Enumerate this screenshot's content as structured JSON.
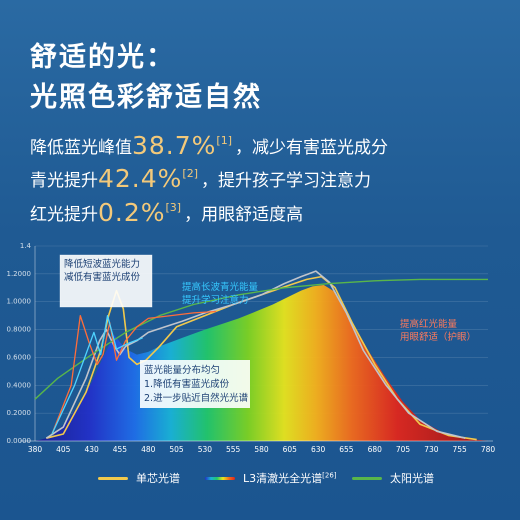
{
  "title_line1": "舒适的光：",
  "title_line2": "光照色彩舒适自然",
  "stats": [
    {
      "pre": "降低蓝光峰值",
      "value": "38.7%",
      "ref": "[1]",
      "post": "，减少有害蓝光成分"
    },
    {
      "pre": "青光提升",
      "value": "42.4%",
      "ref": "[2]",
      "post": "，提升孩子学习注意力"
    },
    {
      "pre": "红光提升",
      "value": "0.2%",
      "ref": "[3]",
      "post": "，用眼舒适度高"
    }
  ],
  "annotations": {
    "blue_line1": "降低短波蓝光能力",
    "blue_line2": "减低有害蓝光成份",
    "cyan_line1": "提高长波青光能量",
    "cyan_line2": "提升学习注意力",
    "red_line1": "提高红光能量",
    "red_line2": "用眼舒适（护眼）",
    "dist_line1": "蓝光能量分布均匀",
    "dist_line2": "1.降低有害蓝光成份",
    "dist_line3": "2.进一步贴近自然光光谱"
  },
  "legend": {
    "single": "单芯光谱",
    "l3_main": "L3清澈光全光谱",
    "l3_ref": "[26]",
    "sun": "太阳光谱"
  },
  "colors": {
    "single": "#f2c94c",
    "sun": "#59b64a",
    "l3": "#c0c4cc",
    "accent": "#f3c97a",
    "red_note": "#ff7a5c"
  },
  "chart_data": {
    "type": "line",
    "x_ticks": [
      380,
      405,
      430,
      455,
      480,
      505,
      530,
      555,
      580,
      605,
      630,
      655,
      680,
      705,
      730,
      755,
      780
    ],
    "y_tick_labels": [
      "1.4",
      "1.2000",
      "1.0000",
      "0.8000",
      "0.6000",
      "0.4000",
      "0.2000",
      "0.0000"
    ],
    "series": [
      {
        "name": "单芯光谱",
        "color": "#f2c94c",
        "x": [
          390,
          405,
          425,
          438,
          445,
          452,
          458,
          463,
          470,
          478,
          490,
          505,
          530,
          555,
          580,
          605,
          620,
          633,
          645,
          660,
          680,
          700,
          720,
          745,
          770
        ],
        "y": [
          0.02,
          0.05,
          0.35,
          0.65,
          0.9,
          1.08,
          0.95,
          0.6,
          0.55,
          0.58,
          0.68,
          0.82,
          0.9,
          0.98,
          1.05,
          1.12,
          1.16,
          1.18,
          1.1,
          0.85,
          0.55,
          0.3,
          0.12,
          0.04,
          0.01
        ]
      },
      {
        "name": "L3清澈光全光谱",
        "color": "#c0c4cc",
        "x": [
          390,
          405,
          425,
          437,
          443,
          450,
          455,
          460,
          470,
          480,
          495,
          510,
          530,
          555,
          580,
          600,
          615,
          628,
          640,
          655,
          670,
          690,
          710,
          735,
          760
        ],
        "y": [
          0.02,
          0.1,
          0.45,
          0.72,
          0.8,
          0.68,
          0.62,
          0.68,
          0.72,
          0.78,
          0.82,
          0.86,
          0.92,
          0.98,
          1.05,
          1.13,
          1.18,
          1.22,
          1.14,
          0.92,
          0.65,
          0.4,
          0.2,
          0.07,
          0.02
        ]
      },
      {
        "name": "太阳光谱",
        "color": "#59b64a",
        "x": [
          380,
          400,
          430,
          460,
          490,
          520,
          560,
          600,
          640,
          680,
          720,
          760,
          780
        ],
        "y": [
          0.3,
          0.45,
          0.62,
          0.78,
          0.9,
          0.98,
          1.05,
          1.1,
          1.13,
          1.15,
          1.16,
          1.16,
          1.16
        ]
      },
      {
        "name": "",
        "color": "#ff6d3a",
        "x": [
          395,
          412,
          420,
          428,
          435,
          440,
          446,
          452,
          460,
          470,
          480,
          500,
          520,
          540
        ],
        "y": [
          0.05,
          0.4,
          0.9,
          0.7,
          0.55,
          0.62,
          0.85,
          0.58,
          0.72,
          0.82,
          0.88,
          0.9,
          0.92,
          0.93
        ]
      },
      {
        "name": "",
        "color": "#4fd3ff",
        "x": [
          395,
          415,
          432,
          438,
          444,
          452,
          462,
          475
        ],
        "y": [
          0.05,
          0.4,
          0.78,
          0.62,
          0.9,
          0.66,
          0.7,
          0.74
        ]
      }
    ],
    "envelope": {
      "x": [
        380,
        395,
        410,
        420,
        430,
        440,
        450,
        460,
        470,
        480,
        490,
        500,
        510,
        520,
        530,
        545,
        560,
        575,
        590,
        605,
        615,
        625,
        635,
        645,
        655,
        665,
        675,
        690,
        705,
        720,
        740,
        760,
        780
      ],
      "y": [
        0.0,
        0.03,
        0.16,
        0.28,
        0.42,
        0.6,
        0.76,
        0.66,
        0.62,
        0.64,
        0.68,
        0.71,
        0.74,
        0.77,
        0.8,
        0.84,
        0.88,
        0.93,
        0.98,
        1.04,
        1.08,
        1.11,
        1.12,
        1.07,
        0.93,
        0.78,
        0.64,
        0.45,
        0.28,
        0.15,
        0.06,
        0.02,
        0.0
      ]
    },
    "xlim": [
      380,
      780
    ],
    "ylim": [
      0,
      1.4
    ]
  }
}
